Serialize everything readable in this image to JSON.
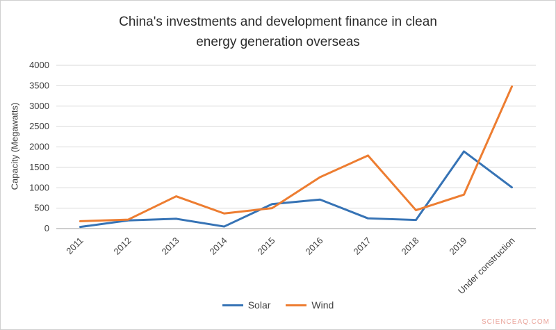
{
  "header": {
    "title_lines": [
      "China's investments and development finance in clean",
      "energy generation overseas"
    ]
  },
  "watermark": "SCIENCEAQ.COM",
  "chart_data": {
    "type": "line",
    "title": "China's investments and development finance in clean energy generation overseas",
    "xlabel": "",
    "ylabel": "Capacity (Megawatts)",
    "ylim": [
      0,
      4000
    ],
    "ytick_step": 500,
    "grid": true,
    "legend_position": "bottom",
    "categories": [
      "2011",
      "2012",
      "2013",
      "2014",
      "2015",
      "2016",
      "2017",
      "2018",
      "2019",
      "Under construction"
    ],
    "series": [
      {
        "name": "Solar",
        "color": "#3673B5",
        "values": [
          40,
          200,
          240,
          50,
          600,
          710,
          250,
          210,
          1890,
          1010
        ]
      },
      {
        "name": "Wind",
        "color": "#ED7D31",
        "values": [
          180,
          220,
          790,
          370,
          500,
          1260,
          1790,
          450,
          830,
          3480
        ]
      }
    ]
  }
}
